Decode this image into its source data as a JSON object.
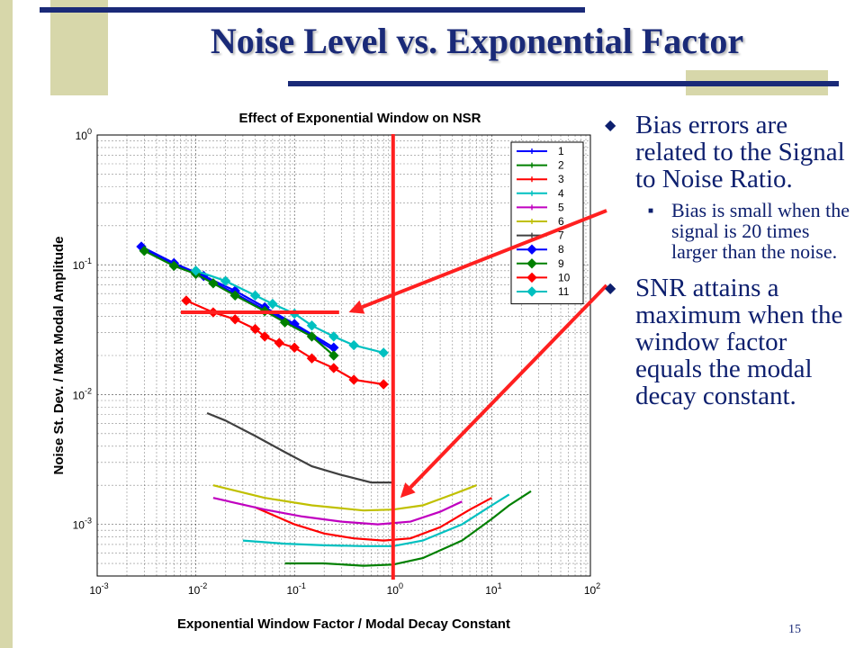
{
  "slide": {
    "title": "Noise Level vs. Exponential Factor",
    "page_number": "15",
    "bullets": [
      {
        "text": "Bias errors are related to the Signal to Noise Ratio.",
        "level": 1,
        "marker": "◆"
      },
      {
        "text": "Bias is small when the signal is 20 times larger than the noise.",
        "level": 2,
        "marker": "■"
      },
      {
        "text": "SNR attains a maximum when the window factor equals the modal decay constant.",
        "level": 1,
        "marker": "◆"
      }
    ],
    "colors": {
      "title": "#1a2a78",
      "bullet_text": "#0d1f6e",
      "decor_bar": "#d7d7aa",
      "decor_rule": "#1a2a78",
      "annotation": "#ff2020"
    }
  },
  "chart_data": {
    "type": "line",
    "title": "Effect of Exponential Window on NSR",
    "xlabel": "Exponential Window Factor / Modal Decay Constant",
    "ylabel": "Noise St. Dev. / Max Modal Amplitude",
    "xscale": "log",
    "yscale": "log",
    "xlim": [
      0.001,
      100
    ],
    "ylim": [
      0.0004,
      1
    ],
    "grid": true,
    "legend_position": "top-right",
    "x_tick_labels": [
      {
        "value": 0.001,
        "base": "10",
        "exp": "-3"
      },
      {
        "value": 0.01,
        "base": "10",
        "exp": "-2"
      },
      {
        "value": 0.1,
        "base": "10",
        "exp": "-1"
      },
      {
        "value": 1,
        "base": "10",
        "exp": "0"
      },
      {
        "value": 10,
        "base": "10",
        "exp": "1"
      },
      {
        "value": 100,
        "base": "10",
        "exp": "2"
      }
    ],
    "y_tick_labels": [
      {
        "value": 0.001,
        "base": "10",
        "exp": "-3"
      },
      {
        "value": 0.01,
        "base": "10",
        "exp": "-2"
      },
      {
        "value": 0.1,
        "base": "10",
        "exp": "-1"
      },
      {
        "value": 1,
        "base": "10",
        "exp": "0"
      }
    ],
    "series": [
      {
        "name": "1",
        "color": "#0000ff",
        "marker": "plus",
        "points": [
          [
            0.0028,
            0.135
          ],
          [
            0.006,
            0.1
          ],
          [
            0.012,
            0.08
          ],
          [
            0.025,
            0.06
          ],
          [
            0.05,
            0.045
          ],
          [
            0.1,
            0.034
          ],
          [
            0.25,
            0.022
          ]
        ]
      },
      {
        "name": "2",
        "color": "#008000",
        "marker": "plus",
        "points": [
          [
            0.08,
            0.0005
          ],
          [
            0.2,
            0.0005
          ],
          [
            0.5,
            0.00048
          ],
          [
            1,
            0.00049
          ],
          [
            2,
            0.00055
          ],
          [
            5,
            0.00075
          ],
          [
            10,
            0.0011
          ],
          [
            15,
            0.0014
          ],
          [
            25,
            0.0018
          ]
        ]
      },
      {
        "name": "3",
        "color": "#ff0000",
        "marker": "plus",
        "points": [
          [
            0.04,
            0.00135
          ],
          [
            0.1,
            0.001
          ],
          [
            0.2,
            0.00085
          ],
          [
            0.4,
            0.00078
          ],
          [
            0.8,
            0.00075
          ],
          [
            1.5,
            0.00078
          ],
          [
            3,
            0.00095
          ],
          [
            6,
            0.0013
          ],
          [
            10,
            0.0016
          ]
        ]
      },
      {
        "name": "4",
        "color": "#00c0c0",
        "marker": "plus",
        "points": [
          [
            0.03,
            0.00075
          ],
          [
            0.08,
            0.00071
          ],
          [
            0.2,
            0.00069
          ],
          [
            0.5,
            0.00068
          ],
          [
            1,
            0.00068
          ],
          [
            2,
            0.00075
          ],
          [
            5,
            0.001
          ],
          [
            10,
            0.0014
          ],
          [
            15,
            0.0017
          ]
        ]
      },
      {
        "name": "5",
        "color": "#c000c0",
        "marker": "plus",
        "points": [
          [
            0.015,
            0.0016
          ],
          [
            0.05,
            0.0013
          ],
          [
            0.12,
            0.00115
          ],
          [
            0.3,
            0.00105
          ],
          [
            0.7,
            0.001
          ],
          [
            1.5,
            0.00105
          ],
          [
            3,
            0.00125
          ],
          [
            5,
            0.0015
          ]
        ]
      },
      {
        "name": "6",
        "color": "#c0c000",
        "marker": "plus",
        "points": [
          [
            0.015,
            0.002
          ],
          [
            0.05,
            0.0016
          ],
          [
            0.15,
            0.0014
          ],
          [
            0.5,
            0.00128
          ],
          [
            1,
            0.0013
          ],
          [
            2,
            0.0014
          ],
          [
            4,
            0.0017
          ],
          [
            7,
            0.002
          ]
        ]
      },
      {
        "name": "7",
        "color": "#404040",
        "marker": "plus",
        "points": [
          [
            0.013,
            0.0072
          ],
          [
            0.02,
            0.0063
          ],
          [
            0.04,
            0.0048
          ],
          [
            0.08,
            0.0036
          ],
          [
            0.15,
            0.0028
          ],
          [
            0.3,
            0.0024
          ],
          [
            0.6,
            0.0021
          ],
          [
            1,
            0.0021
          ]
        ]
      },
      {
        "name": "8",
        "color": "#0000ff",
        "marker": "diamond",
        "points": [
          [
            0.0028,
            0.138
          ],
          [
            0.006,
            0.103
          ],
          [
            0.012,
            0.082
          ],
          [
            0.025,
            0.063
          ],
          [
            0.05,
            0.047
          ],
          [
            0.1,
            0.035
          ],
          [
            0.25,
            0.023
          ]
        ]
      },
      {
        "name": "9",
        "color": "#008000",
        "marker": "diamond",
        "points": [
          [
            0.003,
            0.128
          ],
          [
            0.006,
            0.098
          ],
          [
            0.01,
            0.085
          ],
          [
            0.015,
            0.072
          ],
          [
            0.025,
            0.058
          ],
          [
            0.05,
            0.044
          ],
          [
            0.08,
            0.036
          ],
          [
            0.15,
            0.028
          ],
          [
            0.25,
            0.02
          ]
        ]
      },
      {
        "name": "10",
        "color": "#ff0000",
        "marker": "diamond",
        "points": [
          [
            0.008,
            0.053
          ],
          [
            0.015,
            0.043
          ],
          [
            0.025,
            0.038
          ],
          [
            0.04,
            0.032
          ],
          [
            0.05,
            0.028
          ],
          [
            0.07,
            0.025
          ],
          [
            0.1,
            0.023
          ],
          [
            0.15,
            0.019
          ],
          [
            0.25,
            0.016
          ],
          [
            0.4,
            0.013
          ],
          [
            0.8,
            0.012
          ]
        ]
      },
      {
        "name": "11",
        "color": "#00c0c0",
        "marker": "diamond",
        "points": [
          [
            0.01,
            0.09
          ],
          [
            0.02,
            0.075
          ],
          [
            0.04,
            0.058
          ],
          [
            0.06,
            0.05
          ],
          [
            0.1,
            0.042
          ],
          [
            0.15,
            0.034
          ],
          [
            0.25,
            0.028
          ],
          [
            0.4,
            0.024
          ],
          [
            0.8,
            0.021
          ]
        ]
      }
    ],
    "reference_lines": [
      {
        "orientation": "vertical",
        "x": 1,
        "color": "#ff2020"
      },
      {
        "orientation": "horizontal",
        "y": 0.043,
        "x_range": [
          0.008,
          0.25
        ],
        "color": "#ff2020"
      }
    ],
    "arrows": [
      {
        "to_x": 0.3,
        "to_y": 0.043,
        "from": "bullet-2"
      },
      {
        "to_x": 1,
        "to_y": 0.0016,
        "from": "bullet-3"
      }
    ]
  }
}
